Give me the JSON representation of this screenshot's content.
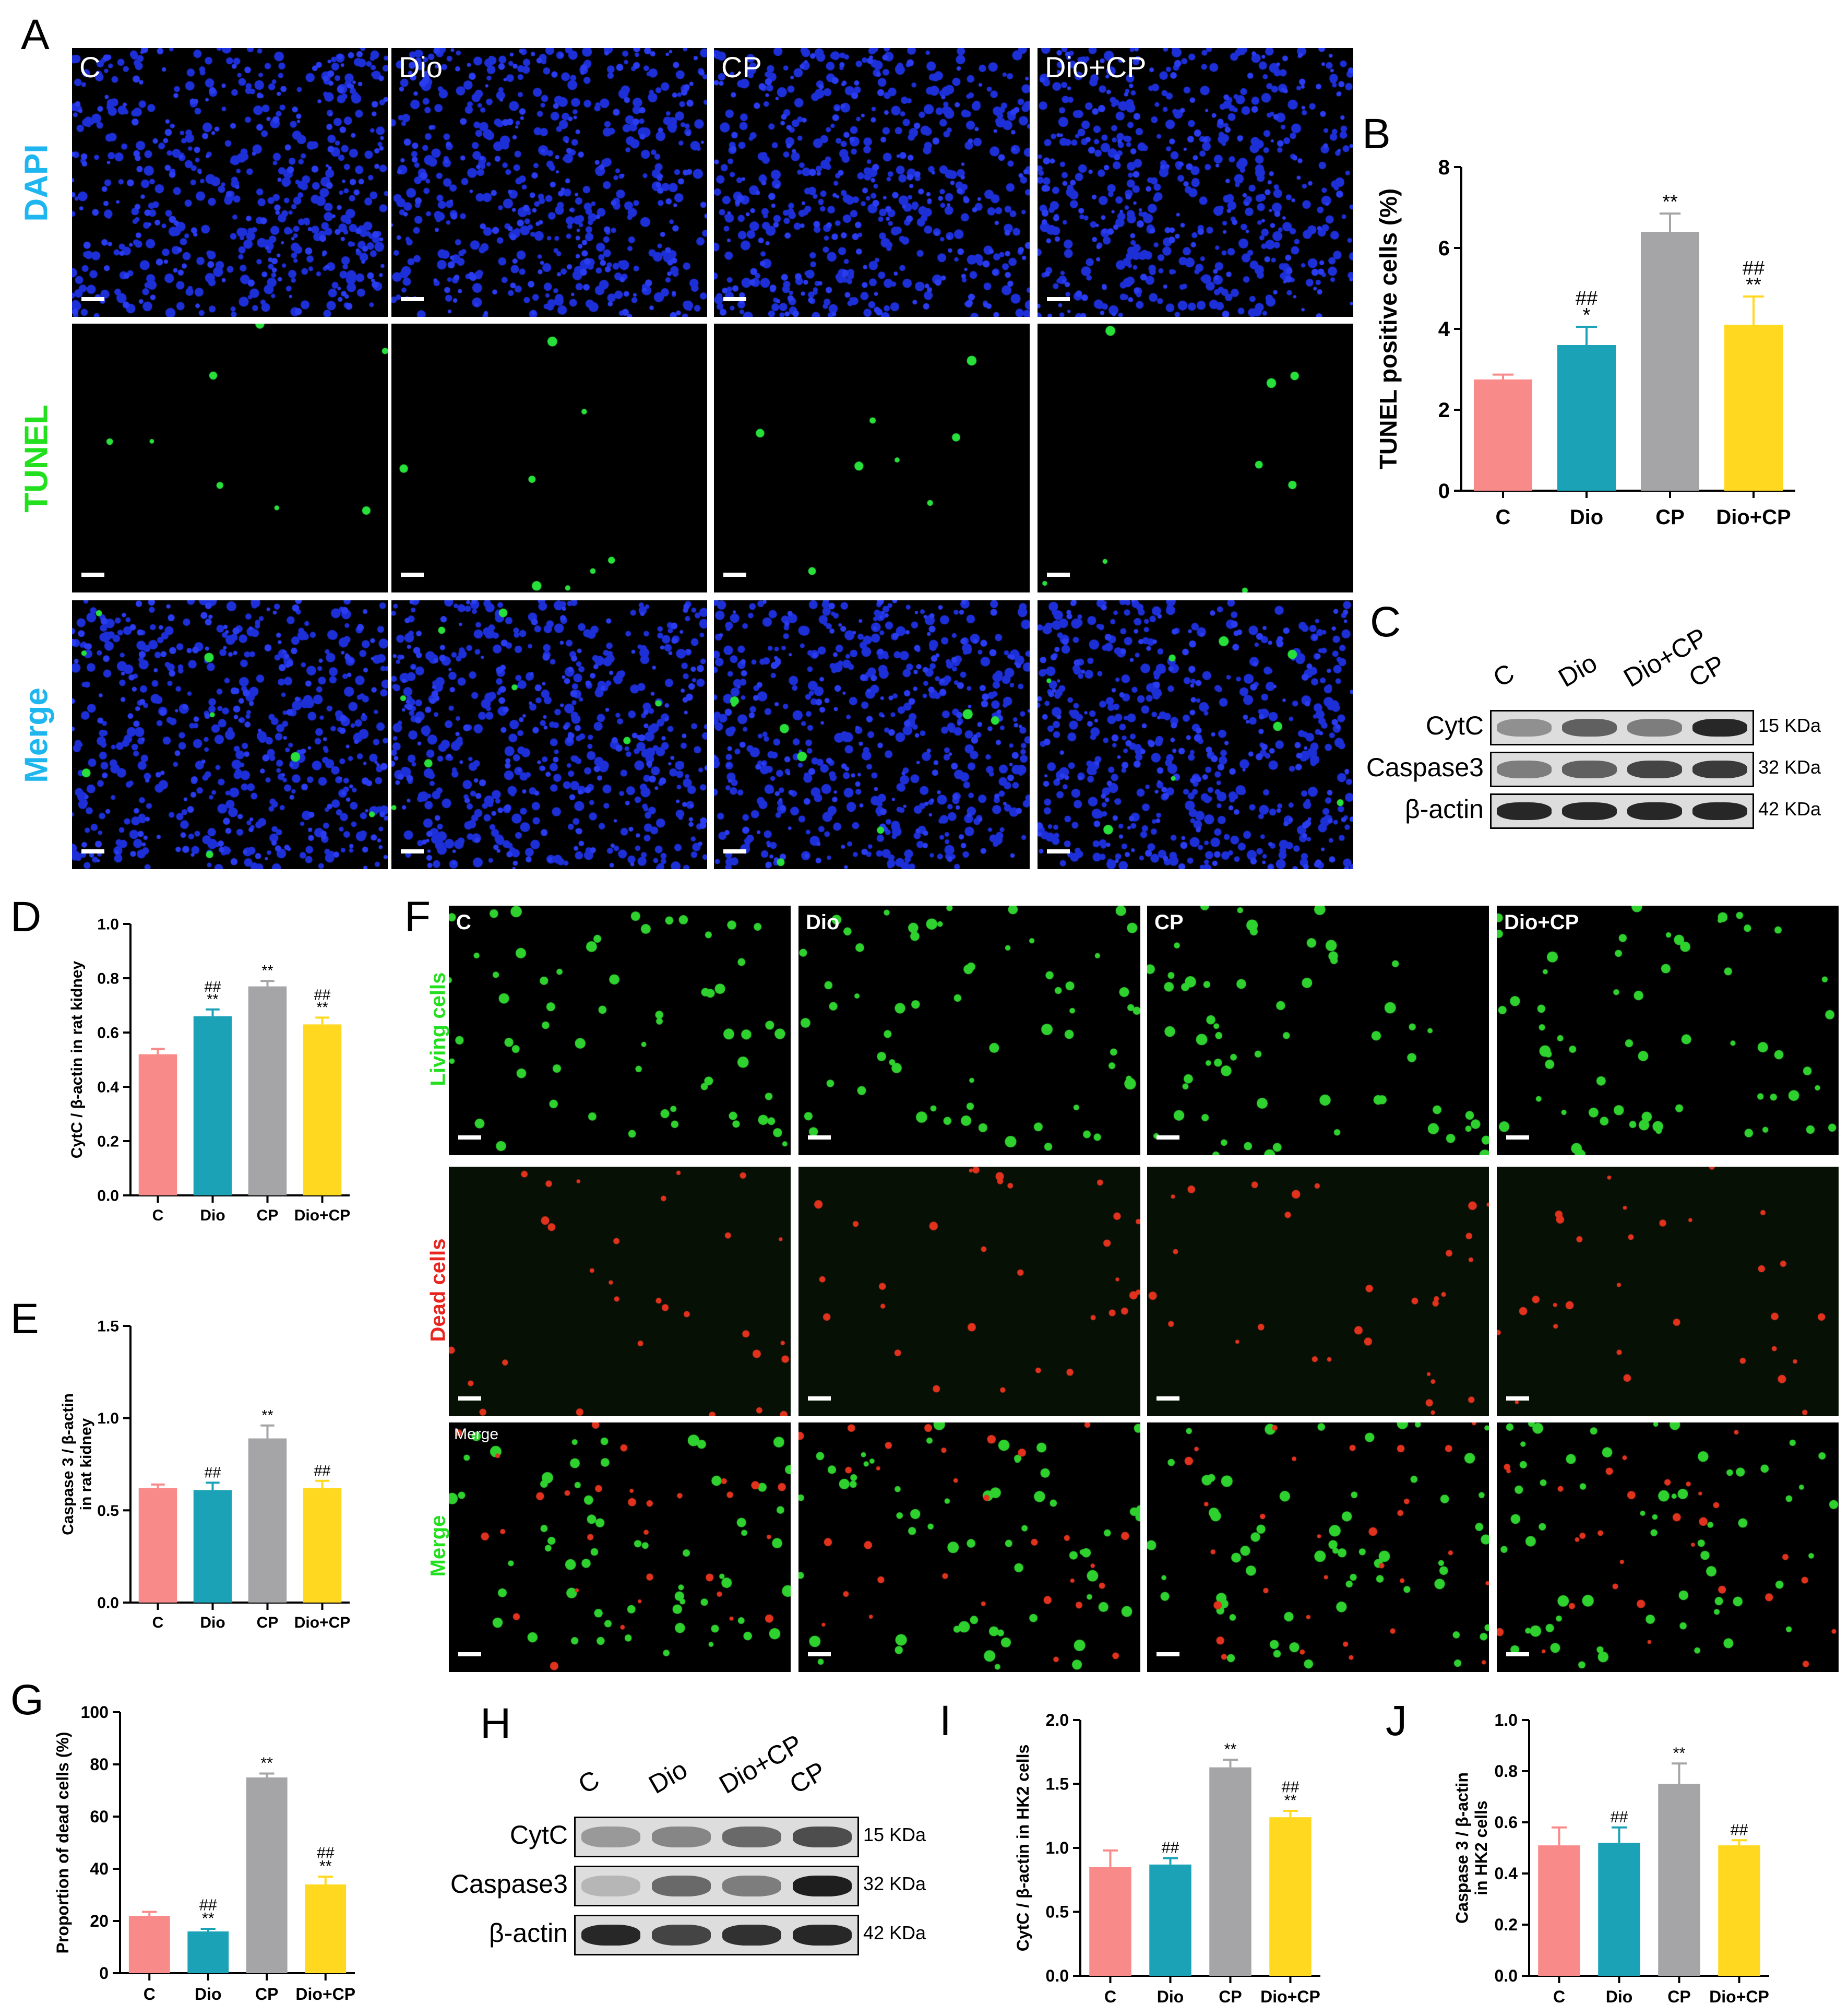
{
  "panel_labels": {
    "A": "A",
    "B": "B",
    "C": "C",
    "D": "D",
    "E": "E",
    "F": "F",
    "G": "G",
    "H": "H",
    "I": "I",
    "J": "J"
  },
  "groups": [
    "C",
    "Dio",
    "CP",
    "Dio+CP"
  ],
  "panel_a": {
    "row_labels": [
      "DAPI",
      "TUNEL",
      "Merge"
    ],
    "row_colors": [
      "#1fb6f0",
      "#22e01e",
      "#1fb6f0"
    ]
  },
  "panel_f": {
    "row_labels": [
      "Living cells",
      "Dead cells",
      "Merge"
    ],
    "row_colors": [
      "#22e01e",
      "#e8251f",
      "#22e01e"
    ],
    "merge_inset": "Merge"
  },
  "blot_c": {
    "lanes": [
      "C",
      "Dio",
      "Dio+CP",
      "CP"
    ],
    "proteins": [
      "CytC",
      "Caspase3",
      "β-actin"
    ],
    "kda": [
      "15 KDa",
      "32 KDa",
      "42 KDa"
    ],
    "band_intensity": [
      [
        0.35,
        0.6,
        0.45,
        0.9
      ],
      [
        0.45,
        0.6,
        0.75,
        0.8
      ],
      [
        0.9,
        0.9,
        0.9,
        0.9
      ]
    ]
  },
  "blot_h": {
    "lanes": [
      "C",
      "Dio",
      "Dio+CP",
      "CP"
    ],
    "proteins": [
      "CytC",
      "Caspase3",
      "β-actin"
    ],
    "kda": [
      "15 KDa",
      "32 KDa",
      "42 KDa"
    ],
    "band_intensity": [
      [
        0.3,
        0.4,
        0.55,
        0.7
      ],
      [
        0.15,
        0.55,
        0.45,
        0.95
      ],
      [
        0.9,
        0.75,
        0.85,
        0.9
      ]
    ]
  },
  "bar_colors": [
    "#f98a8a",
    "#1ba2b6",
    "#a5a5a8",
    "#ffd81f"
  ],
  "chart_data": [
    {
      "id": "B",
      "type": "bar",
      "categories": [
        "C",
        "Dio",
        "CP",
        "Dio+CP"
      ],
      "values": [
        2.75,
        3.6,
        6.4,
        4.1
      ],
      "errors": [
        0.12,
        0.45,
        0.45,
        0.7
      ],
      "ylabel": "TUNEL positive cells (%)",
      "xlabel": "",
      "ylim": [
        0,
        8
      ],
      "ticks": [
        0,
        2,
        4,
        6,
        8
      ],
      "annotations": [
        "",
        "##\n*",
        "**",
        "##\n**"
      ]
    },
    {
      "id": "D",
      "type": "bar",
      "categories": [
        "C",
        "Dio",
        "CP",
        "Dio+CP"
      ],
      "values": [
        0.52,
        0.66,
        0.77,
        0.63
      ],
      "errors": [
        0.02,
        0.025,
        0.02,
        0.025
      ],
      "ylabel": "CytC / β-actin in rat kidney",
      "xlabel": "",
      "ylim": [
        0,
        1.0
      ],
      "ticks": [
        0.0,
        0.2,
        0.4,
        0.6,
        0.8,
        1.0
      ],
      "annotations": [
        "",
        "##\n**",
        "**",
        "##\n**"
      ]
    },
    {
      "id": "E",
      "type": "bar",
      "categories": [
        "C",
        "Dio",
        "CP",
        "Dio+CP"
      ],
      "values": [
        0.62,
        0.61,
        0.89,
        0.62
      ],
      "errors": [
        0.02,
        0.04,
        0.07,
        0.04
      ],
      "ylabel": "Caspase 3 / β-actin\nin rat kidney",
      "xlabel": "",
      "ylim": [
        0,
        1.5
      ],
      "ticks": [
        0.0,
        0.5,
        1.0,
        1.5
      ],
      "annotations": [
        "",
        "##",
        "**",
        "##"
      ]
    },
    {
      "id": "G",
      "type": "bar",
      "categories": [
        "C",
        "Dio",
        "CP",
        "Dio+CP"
      ],
      "values": [
        22,
        16,
        75,
        34
      ],
      "errors": [
        1.5,
        1,
        1.5,
        3
      ],
      "ylabel": "Proportion of dead cells (%)",
      "xlabel": "",
      "ylim": [
        0,
        100
      ],
      "ticks": [
        0,
        20,
        40,
        60,
        80,
        100
      ],
      "annotations": [
        "",
        "##\n**",
        "**",
        "##\n**"
      ]
    },
    {
      "id": "I",
      "type": "bar",
      "categories": [
        "C",
        "Dio",
        "CP",
        "Dio+CP"
      ],
      "values": [
        0.85,
        0.87,
        1.63,
        1.24
      ],
      "errors": [
        0.13,
        0.05,
        0.06,
        0.05
      ],
      "ylabel": "CytC / β-actin in HK2 cells",
      "xlabel": "",
      "ylim": [
        0,
        2.0
      ],
      "ticks": [
        0.0,
        0.5,
        1.0,
        1.5,
        2.0
      ],
      "annotations": [
        "",
        "##",
        "**",
        "##\n**"
      ]
    },
    {
      "id": "J",
      "type": "bar",
      "categories": [
        "C",
        "Dio",
        "CP",
        "Dio+CP"
      ],
      "values": [
        0.51,
        0.52,
        0.75,
        0.51
      ],
      "errors": [
        0.07,
        0.06,
        0.08,
        0.02
      ],
      "ylabel": "Caspase 3 / β-actin\nin HK2 cells",
      "xlabel": "",
      "ylim": [
        0,
        1.0
      ],
      "ticks": [
        0.0,
        0.2,
        0.4,
        0.6,
        0.8,
        1.0
      ],
      "annotations": [
        "",
        "##",
        "**",
        "##"
      ]
    }
  ]
}
